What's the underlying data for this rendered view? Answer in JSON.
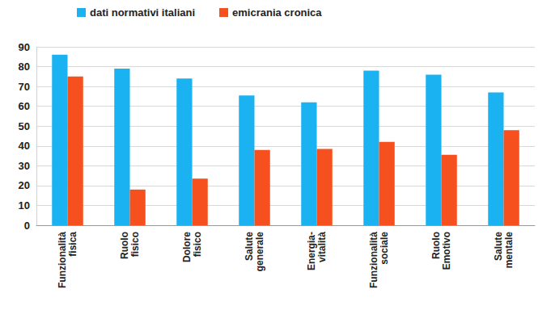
{
  "chart_data": {
    "type": "bar",
    "categories": [
      "Funzionalità fisica",
      "Ruolo fisico",
      "Dolore fisico",
      "Salute generale",
      "Energia-vitalità",
      "Funzionalità sociale",
      "Ruolo Emotivo",
      "Salute mentale"
    ],
    "series": [
      {
        "name": "dati normativi italiani",
        "color": "#1ab2f0",
        "values": [
          86,
          79,
          74,
          65.5,
          62,
          78,
          76,
          67
        ]
      },
      {
        "name": "emicrania cronica",
        "color": "#f5501e",
        "values": [
          75,
          18,
          23.5,
          38,
          38.5,
          42,
          35.5,
          48
        ]
      }
    ],
    "ylim": [
      0,
      90
    ],
    "yticks": [
      0,
      10,
      20,
      30,
      40,
      50,
      60,
      70,
      80,
      90
    ],
    "grid": true,
    "legend": "top-left"
  }
}
